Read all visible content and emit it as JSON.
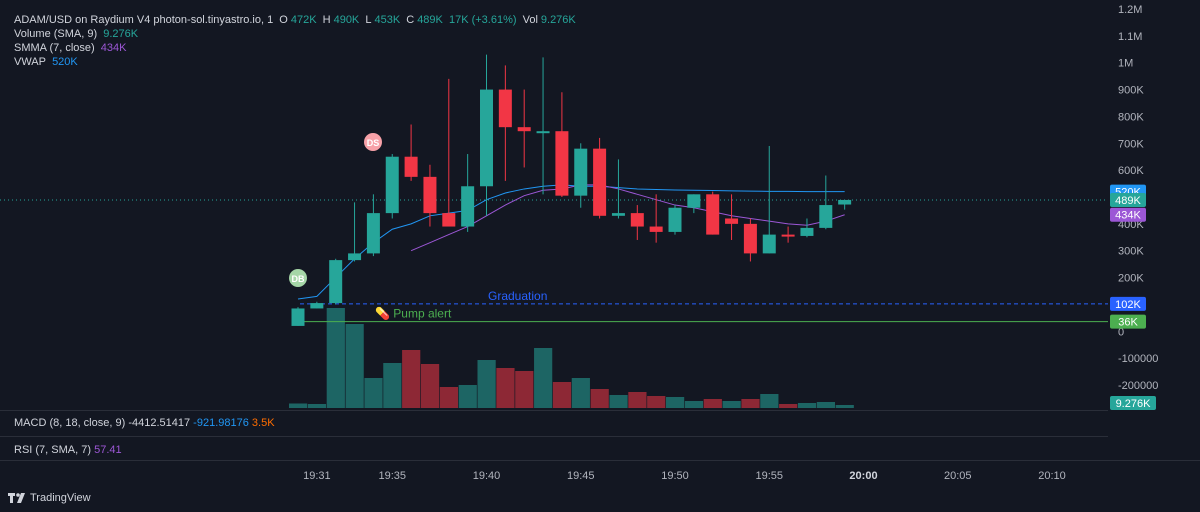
{
  "header": {
    "title": "ADAM/USD on Raydium V4 photon-sol.tinyastro.io, 1",
    "o_label": "O",
    "o_value": "472K",
    "h_label": "H",
    "h_value": "490K",
    "l_label": "L",
    "l_value": "453K",
    "c_label": "C",
    "c_value": "489K",
    "change": "17K (+3.61%)",
    "vol_label": "Vol",
    "vol_value": "9.276K"
  },
  "indicators": [
    {
      "name": "Volume (SMA, 9)",
      "value": "9.276K",
      "color": "#26a69a"
    },
    {
      "name": "SMMA (7, close)",
      "value": "434K",
      "color": "#9c57d6"
    },
    {
      "name": "VWAP",
      "value": "520K",
      "color": "#2196f3"
    }
  ],
  "macd": {
    "name": "MACD (8, 18, close, 9)",
    "v1": "-4412.51417",
    "v2": "-921.98176",
    "v3": "3.5K"
  },
  "rsi": {
    "name": "RSI (7, SMA, 7)",
    "value": "57.41"
  },
  "footer": {
    "brand": "TradingView"
  },
  "annotations": {
    "graduation": "Graduation",
    "pump_alert": "💊 Pump alert",
    "ds": "DS",
    "db": "DB"
  },
  "chart_data": {
    "type": "candlestick",
    "y_ticks": [
      "1.2M",
      "1.1M",
      "1M",
      "900K",
      "800K",
      "700K",
      "600K",
      "500K",
      "400K",
      "300K",
      "200K",
      "100K",
      "0",
      "-100000",
      "-200000"
    ],
    "y_tick_values": [
      1200000,
      1100000,
      1000000,
      900000,
      800000,
      700000,
      600000,
      500000,
      400000,
      300000,
      200000,
      100000,
      0,
      -100000,
      -200000
    ],
    "ylim": [
      -250000,
      1200000
    ],
    "x_ticks": [
      {
        "label": "19:31",
        "idx": 1
      },
      {
        "label": "19:35",
        "idx": 5
      },
      {
        "label": "19:40",
        "idx": 10
      },
      {
        "label": "19:45",
        "idx": 15
      },
      {
        "label": "19:50",
        "idx": 20
      },
      {
        "label": "19:55",
        "idx": 25
      },
      {
        "label": "20:00",
        "idx": 30
      },
      {
        "label": "20:05",
        "idx": 35
      },
      {
        "label": "20:10",
        "idx": 40
      }
    ],
    "candles": [
      {
        "o": 20000,
        "h": 90000,
        "l": 20000,
        "c": 85000
      },
      {
        "o": 85000,
        "h": 110000,
        "l": 85000,
        "c": 105000
      },
      {
        "o": 105000,
        "h": 270000,
        "l": 100000,
        "c": 265000
      },
      {
        "o": 265000,
        "h": 480000,
        "l": 260000,
        "c": 290000
      },
      {
        "o": 290000,
        "h": 510000,
        "l": 280000,
        "c": 440000
      },
      {
        "o": 440000,
        "h": 660000,
        "l": 420000,
        "c": 650000
      },
      {
        "o": 650000,
        "h": 770000,
        "l": 560000,
        "c": 575000
      },
      {
        "o": 575000,
        "h": 620000,
        "l": 390000,
        "c": 440000
      },
      {
        "o": 440000,
        "h": 940000,
        "l": 400000,
        "c": 390000
      },
      {
        "o": 390000,
        "h": 660000,
        "l": 370000,
        "c": 540000
      },
      {
        "o": 540000,
        "h": 1030000,
        "l": 430000,
        "c": 900000
      },
      {
        "o": 900000,
        "h": 990000,
        "l": 560000,
        "c": 760000
      },
      {
        "o": 760000,
        "h": 900000,
        "l": 610000,
        "c": 745000
      },
      {
        "o": 745000,
        "h": 1020000,
        "l": 510000,
        "c": 745000
      },
      {
        "o": 745000,
        "h": 890000,
        "l": 500000,
        "c": 505000
      },
      {
        "o": 505000,
        "h": 700000,
        "l": 460000,
        "c": 680000
      },
      {
        "o": 680000,
        "h": 720000,
        "l": 420000,
        "c": 430000
      },
      {
        "o": 430000,
        "h": 640000,
        "l": 420000,
        "c": 440000
      },
      {
        "o": 440000,
        "h": 470000,
        "l": 340000,
        "c": 390000
      },
      {
        "o": 390000,
        "h": 510000,
        "l": 330000,
        "c": 370000
      },
      {
        "o": 370000,
        "h": 470000,
        "l": 360000,
        "c": 460000
      },
      {
        "o": 460000,
        "h": 510000,
        "l": 440000,
        "c": 510000
      },
      {
        "o": 510000,
        "h": 520000,
        "l": 360000,
        "c": 360000
      },
      {
        "o": 420000,
        "h": 510000,
        "l": 340000,
        "c": 400000
      },
      {
        "o": 400000,
        "h": 420000,
        "l": 260000,
        "c": 290000
      },
      {
        "o": 290000,
        "h": 690000,
        "l": 290000,
        "c": 360000
      },
      {
        "o": 360000,
        "h": 390000,
        "l": 330000,
        "c": 355000
      },
      {
        "o": 355000,
        "h": 420000,
        "l": 350000,
        "c": 385000
      },
      {
        "o": 385000,
        "h": 580000,
        "l": 380000,
        "c": 470000
      },
      {
        "o": 472000,
        "h": 490000,
        "l": 453000,
        "c": 489000
      }
    ],
    "volume": [
      {
        "v": 4.5,
        "up": true
      },
      {
        "v": 4,
        "up": true
      },
      {
        "v": 100,
        "up": true
      },
      {
        "v": 84,
        "up": true
      },
      {
        "v": 30,
        "up": true
      },
      {
        "v": 45,
        "up": true
      },
      {
        "v": 58,
        "up": false
      },
      {
        "v": 44,
        "up": false
      },
      {
        "v": 21,
        "up": false
      },
      {
        "v": 23,
        "up": true
      },
      {
        "v": 48,
        "up": true
      },
      {
        "v": 40,
        "up": false
      },
      {
        "v": 37,
        "up": false
      },
      {
        "v": 60,
        "up": true
      },
      {
        "v": 26,
        "up": false
      },
      {
        "v": 30,
        "up": true
      },
      {
        "v": 19,
        "up": false
      },
      {
        "v": 13,
        "up": true
      },
      {
        "v": 16,
        "up": false
      },
      {
        "v": 12,
        "up": false
      },
      {
        "v": 11,
        "up": true
      },
      {
        "v": 7,
        "up": true
      },
      {
        "v": 9,
        "up": false
      },
      {
        "v": 7,
        "up": true
      },
      {
        "v": 9,
        "up": false
      },
      {
        "v": 14,
        "up": true
      },
      {
        "v": 4,
        "up": false
      },
      {
        "v": 5,
        "up": true
      },
      {
        "v": 6,
        "up": true
      },
      {
        "v": 3,
        "up": true
      }
    ],
    "smma": [
      null,
      null,
      null,
      null,
      null,
      null,
      300000,
      330000,
      360000,
      390000,
      430000,
      470000,
      505000,
      525000,
      530000,
      545000,
      545000,
      530000,
      510000,
      490000,
      470000,
      460000,
      445000,
      430000,
      420000,
      410000,
      400000,
      395000,
      410000,
      434000
    ],
    "vwap": [
      120000,
      130000,
      200000,
      270000,
      330000,
      380000,
      400000,
      430000,
      440000,
      450000,
      490000,
      515000,
      530000,
      540000,
      545000,
      540000,
      540000,
      535000,
      530000,
      528000,
      526000,
      525000,
      524000,
      523000,
      522000,
      521000,
      521000,
      520000,
      520000,
      520000
    ],
    "graduation_level": 102000,
    "pump_alert_level": 36000,
    "last_price": 489000,
    "price_labels": [
      {
        "text": "520K",
        "value": 520000,
        "color": "#2196f3"
      },
      {
        "text": "489K",
        "value": 489000,
        "color": "#26a69a"
      },
      {
        "text": "434K",
        "value": 434000,
        "color": "#9c57d6"
      },
      {
        "text": "102K",
        "value": 102000,
        "color": "#2962ff"
      },
      {
        "text": "36K",
        "value": 36000,
        "color": "#4caf50"
      }
    ],
    "volume_label": "9.276K",
    "colors": {
      "up": "#26a69a",
      "down": "#f23645",
      "bg": "#131722",
      "grid": "#1e222d",
      "text": "#b2b5be"
    }
  }
}
